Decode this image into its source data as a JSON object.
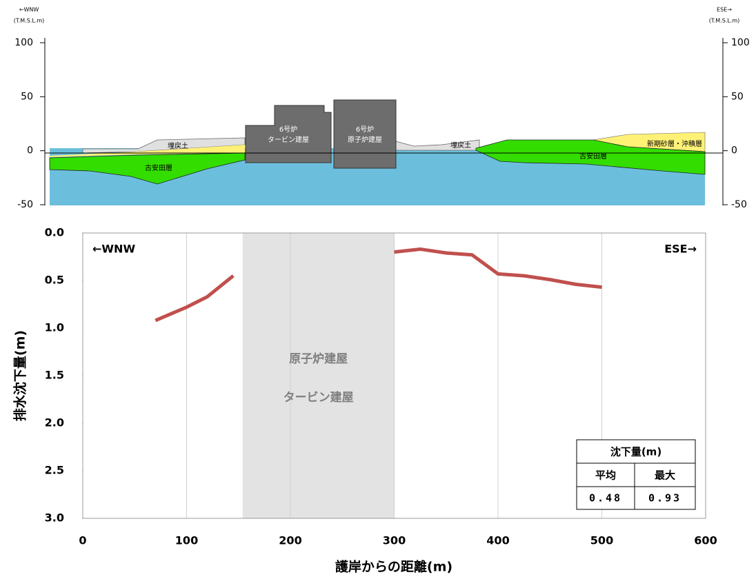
{
  "section": {
    "left_label": "←WNW",
    "right_label": "ESE→",
    "unit": "(T.M.S.L.m)",
    "ylim": [
      -50,
      100
    ],
    "yticks": [
      100,
      50,
      0,
      -50
    ],
    "labels": {
      "fill_left": "埋戻土",
      "fill_right": "埋戻土",
      "koyasuda_left": "古安田層",
      "koyasuda_right": "古安田層",
      "turbine_unit": "6号炉",
      "turbine": "タービン建屋",
      "reactor_unit": "6号炉",
      "reactor": "原子炉建屋",
      "sand": "新期砂層・沖積層"
    }
  },
  "chart_data": {
    "type": "line",
    "xlabel": "護岸からの距離(m)",
    "ylabel": "排水沈下量(m)",
    "corner_left": "←WNW",
    "corner_right": "ESE→",
    "x": [
      70,
      100,
      120,
      145,
      225,
      300,
      325,
      350,
      375,
      400,
      425,
      450,
      475,
      500
    ],
    "values": [
      0.92,
      0.78,
      0.67,
      0.45,
      null,
      0.2,
      0.17,
      0.21,
      0.23,
      0.43,
      0.45,
      0.49,
      0.54,
      0.57
    ],
    "color": "#c0504d",
    "xlim": [
      0,
      600
    ],
    "xticks": [
      0,
      100,
      200,
      300,
      400,
      500,
      600
    ],
    "ylim": [
      0,
      3
    ],
    "y_inverted": true,
    "yticks": [
      {
        "value": 0,
        "label": "0.0"
      },
      0.5,
      {
        "value": 1,
        "label": "1.0"
      },
      1.5,
      {
        "value": 2,
        "label": "2.0"
      },
      2.5,
      {
        "value": 3,
        "label": "3.0"
      }
    ],
    "grid": "x",
    "shaded_region": {
      "xlim": [
        154,
        300
      ],
      "color": "#e3e3e3",
      "labels": [
        "原子炉建屋",
        "タービン建屋"
      ]
    },
    "table": {
      "title": "沈下量(m)",
      "header": [
        "平均",
        "最大"
      ],
      "row": [
        "0.48",
        "0.93"
      ]
    }
  }
}
